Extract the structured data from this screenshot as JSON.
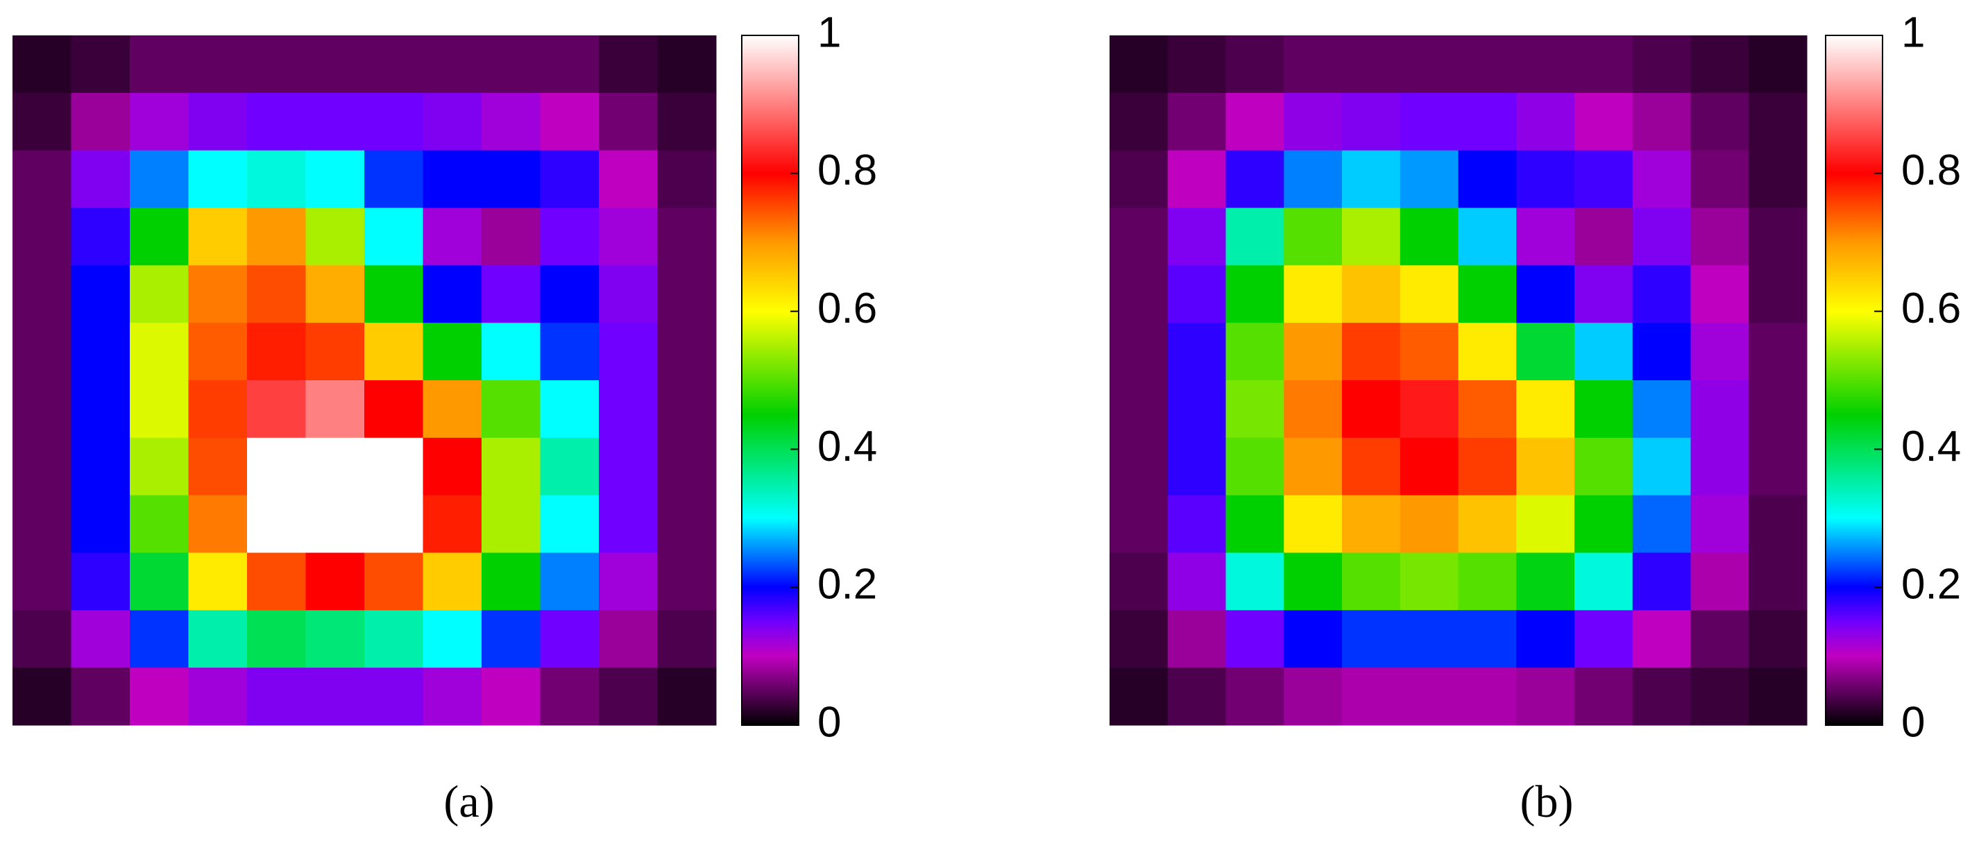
{
  "chart_data": [
    {
      "type": "heatmap",
      "caption": "(a)",
      "values": [
        [
          0.02,
          0.03,
          0.05,
          0.05,
          0.05,
          0.05,
          0.05,
          0.05,
          0.05,
          0.05,
          0.03,
          0.02
        ],
        [
          0.03,
          0.08,
          0.12,
          0.14,
          0.15,
          0.15,
          0.15,
          0.14,
          0.12,
          0.1,
          0.06,
          0.03
        ],
        [
          0.05,
          0.14,
          0.25,
          0.3,
          0.32,
          0.3,
          0.22,
          0.2,
          0.2,
          0.18,
          0.1,
          0.04
        ],
        [
          0.05,
          0.18,
          0.45,
          0.65,
          0.7,
          0.55,
          0.3,
          0.12,
          0.08,
          0.15,
          0.12,
          0.05
        ],
        [
          0.05,
          0.2,
          0.55,
          0.72,
          0.75,
          0.68,
          0.45,
          0.2,
          0.15,
          0.2,
          0.14,
          0.05
        ],
        [
          0.05,
          0.2,
          0.58,
          0.74,
          0.78,
          0.76,
          0.65,
          0.45,
          0.3,
          0.22,
          0.15,
          0.05
        ],
        [
          0.05,
          0.2,
          0.58,
          0.76,
          0.85,
          0.9,
          0.8,
          0.7,
          0.5,
          0.3,
          0.15,
          0.05
        ],
        [
          0.05,
          0.2,
          0.55,
          0.75,
          1,
          1,
          1,
          0.8,
          0.55,
          0.35,
          0.15,
          0.05
        ],
        [
          0.05,
          0.2,
          0.5,
          0.72,
          1,
          1,
          1,
          0.78,
          0.55,
          0.3,
          0.15,
          0.05
        ],
        [
          0.05,
          0.18,
          0.42,
          0.62,
          0.75,
          0.8,
          0.75,
          0.65,
          0.45,
          0.25,
          0.12,
          0.05
        ],
        [
          0.04,
          0.12,
          0.22,
          0.35,
          0.4,
          0.38,
          0.35,
          0.3,
          0.22,
          0.15,
          0.08,
          0.04
        ],
        [
          0.02,
          0.05,
          0.1,
          0.12,
          0.14,
          0.14,
          0.14,
          0.12,
          0.1,
          0.06,
          0.04,
          0.02
        ]
      ],
      "zlim": [
        0,
        1
      ],
      "zticks": [
        0,
        0.2,
        0.4,
        0.6,
        0.8,
        1
      ],
      "colormap": [
        [
          0,
          "#000000"
        ],
        [
          0.1,
          "#c000c0"
        ],
        [
          0.15,
          "#7000ff"
        ],
        [
          0.2,
          "#0000ff"
        ],
        [
          0.3,
          "#00ffff"
        ],
        [
          0.45,
          "#00d000"
        ],
        [
          0.6,
          "#ffff00"
        ],
        [
          0.7,
          "#ff9900"
        ],
        [
          0.8,
          "#ff0000"
        ],
        [
          1,
          "#ffffff"
        ]
      ]
    },
    {
      "type": "heatmap",
      "caption": "(b)",
      "values": [
        [
          0.02,
          0.03,
          0.04,
          0.05,
          0.05,
          0.05,
          0.05,
          0.05,
          0.05,
          0.04,
          0.03,
          0.02
        ],
        [
          0.03,
          0.06,
          0.1,
          0.13,
          0.14,
          0.15,
          0.15,
          0.13,
          0.1,
          0.08,
          0.05,
          0.03
        ],
        [
          0.04,
          0.1,
          0.18,
          0.25,
          0.28,
          0.26,
          0.2,
          0.18,
          0.17,
          0.12,
          0.06,
          0.03
        ],
        [
          0.05,
          0.14,
          0.35,
          0.5,
          0.55,
          0.45,
          0.28,
          0.12,
          0.08,
          0.14,
          0.08,
          0.04
        ],
        [
          0.05,
          0.16,
          0.45,
          0.62,
          0.66,
          0.62,
          0.45,
          0.2,
          0.14,
          0.18,
          0.1,
          0.04
        ],
        [
          0.05,
          0.18,
          0.5,
          0.7,
          0.76,
          0.74,
          0.62,
          0.42,
          0.28,
          0.2,
          0.12,
          0.05
        ],
        [
          0.05,
          0.18,
          0.52,
          0.72,
          0.8,
          0.82,
          0.74,
          0.62,
          0.45,
          0.25,
          0.13,
          0.05
        ],
        [
          0.05,
          0.18,
          0.5,
          0.7,
          0.76,
          0.8,
          0.76,
          0.66,
          0.5,
          0.28,
          0.13,
          0.05
        ],
        [
          0.05,
          0.16,
          0.45,
          0.62,
          0.68,
          0.7,
          0.66,
          0.58,
          0.45,
          0.24,
          0.12,
          0.04
        ],
        [
          0.04,
          0.13,
          0.32,
          0.45,
          0.5,
          0.52,
          0.5,
          0.44,
          0.32,
          0.18,
          0.09,
          0.04
        ],
        [
          0.03,
          0.08,
          0.15,
          0.2,
          0.22,
          0.22,
          0.22,
          0.2,
          0.15,
          0.1,
          0.05,
          0.03
        ],
        [
          0.02,
          0.04,
          0.06,
          0.08,
          0.09,
          0.09,
          0.09,
          0.08,
          0.06,
          0.04,
          0.03,
          0.02
        ]
      ],
      "zlim": [
        0,
        1
      ],
      "zticks": [
        0,
        0.2,
        0.4,
        0.6,
        0.8,
        1
      ],
      "colormap": [
        [
          0,
          "#000000"
        ],
        [
          0.1,
          "#c000c0"
        ],
        [
          0.15,
          "#7000ff"
        ],
        [
          0.2,
          "#0000ff"
        ],
        [
          0.3,
          "#00ffff"
        ],
        [
          0.45,
          "#00d000"
        ],
        [
          0.6,
          "#ffff00"
        ],
        [
          0.7,
          "#ff9900"
        ],
        [
          0.8,
          "#ff0000"
        ],
        [
          1,
          "#ffffff"
        ]
      ]
    }
  ]
}
